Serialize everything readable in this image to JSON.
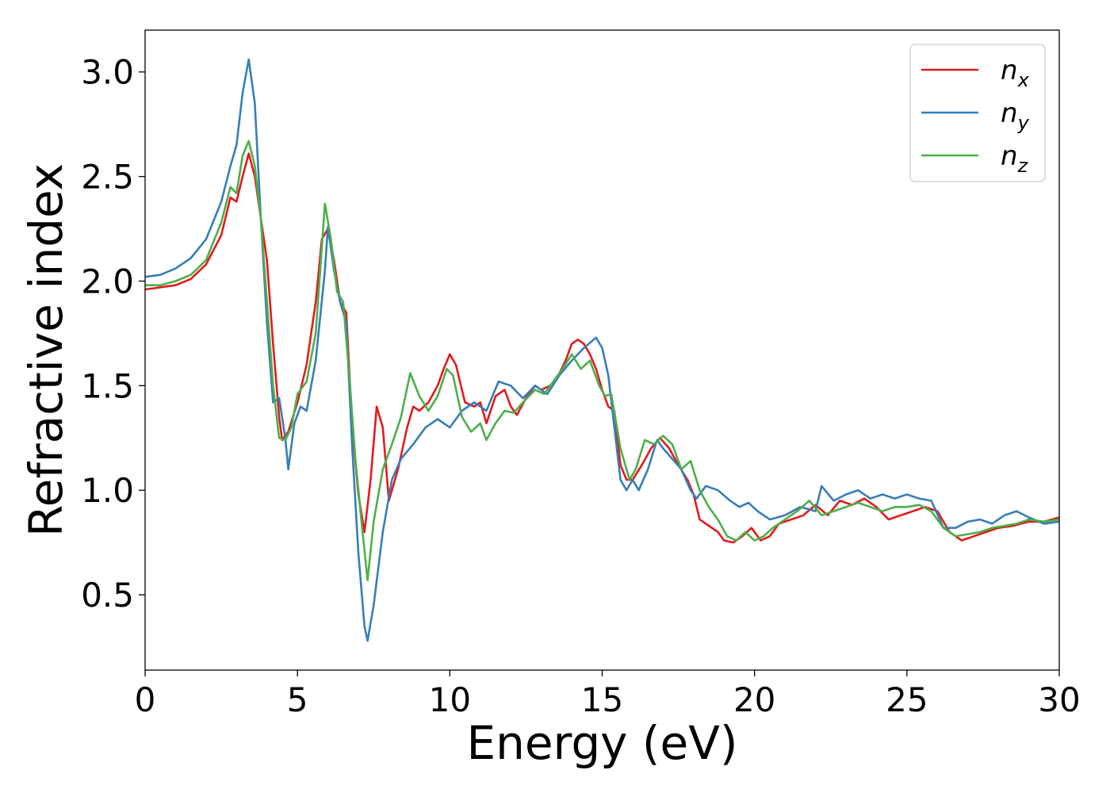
{
  "chart_data": {
    "type": "line",
    "title": "",
    "xlabel": "Energy (eV)",
    "ylabel": "Refractive index",
    "xlim": [
      0,
      30
    ],
    "ylim": [
      0.14,
      3.2
    ],
    "xticks": [
      0,
      5,
      10,
      15,
      20,
      25,
      30
    ],
    "yticks": [
      0.5,
      1.0,
      1.5,
      2.0,
      2.5,
      3.0
    ],
    "xtick_labels": [
      "0",
      "5",
      "10",
      "15",
      "20",
      "25",
      "30"
    ],
    "ytick_labels": [
      "0.5",
      "1.0",
      "1.5",
      "2.0",
      "2.5",
      "3.0"
    ],
    "grid": false,
    "legend_position": "top-right",
    "series": [
      {
        "name_base": "n",
        "name_sub": "x",
        "color": "#e41a1c",
        "points": [
          [
            0,
            1.96
          ],
          [
            1,
            1.98
          ],
          [
            1.5,
            2.01
          ],
          [
            2,
            2.08
          ],
          [
            2.5,
            2.22
          ],
          [
            2.8,
            2.4
          ],
          [
            3.0,
            2.38
          ],
          [
            3.2,
            2.5
          ],
          [
            3.4,
            2.61
          ],
          [
            3.6,
            2.5
          ],
          [
            3.8,
            2.3
          ],
          [
            4.0,
            2.1
          ],
          [
            4.2,
            1.7
          ],
          [
            4.4,
            1.35
          ],
          [
            4.5,
            1.24
          ],
          [
            4.7,
            1.28
          ],
          [
            5.0,
            1.42
          ],
          [
            5.3,
            1.6
          ],
          [
            5.6,
            1.9
          ],
          [
            5.8,
            2.2
          ],
          [
            6.0,
            2.25
          ],
          [
            6.2,
            2.1
          ],
          [
            6.4,
            1.9
          ],
          [
            6.6,
            1.85
          ],
          [
            6.8,
            1.3
          ],
          [
            7.0,
            0.98
          ],
          [
            7.2,
            0.8
          ],
          [
            7.4,
            1.05
          ],
          [
            7.6,
            1.4
          ],
          [
            7.8,
            1.3
          ],
          [
            8.0,
            0.95
          ],
          [
            8.3,
            1.1
          ],
          [
            8.6,
            1.3
          ],
          [
            8.8,
            1.4
          ],
          [
            9.0,
            1.38
          ],
          [
            9.3,
            1.42
          ],
          [
            9.6,
            1.5
          ],
          [
            9.8,
            1.58
          ],
          [
            10.0,
            1.65
          ],
          [
            10.2,
            1.6
          ],
          [
            10.5,
            1.42
          ],
          [
            10.8,
            1.4
          ],
          [
            11.0,
            1.42
          ],
          [
            11.2,
            1.32
          ],
          [
            11.5,
            1.45
          ],
          [
            11.8,
            1.48
          ],
          [
            12.0,
            1.4
          ],
          [
            12.2,
            1.36
          ],
          [
            12.5,
            1.44
          ],
          [
            12.8,
            1.5
          ],
          [
            13.0,
            1.48
          ],
          [
            13.3,
            1.5
          ],
          [
            13.6,
            1.56
          ],
          [
            13.8,
            1.62
          ],
          [
            14.0,
            1.7
          ],
          [
            14.2,
            1.72
          ],
          [
            14.4,
            1.7
          ],
          [
            14.6,
            1.65
          ],
          [
            14.8,
            1.58
          ],
          [
            15.0,
            1.48
          ],
          [
            15.2,
            1.4
          ],
          [
            15.4,
            1.38
          ],
          [
            15.6,
            1.12
          ],
          [
            15.8,
            1.05
          ],
          [
            16.0,
            1.05
          ],
          [
            16.3,
            1.12
          ],
          [
            16.6,
            1.2
          ],
          [
            16.9,
            1.25
          ],
          [
            17.2,
            1.2
          ],
          [
            17.5,
            1.12
          ],
          [
            17.8,
            1.05
          ],
          [
            18.0,
            0.98
          ],
          [
            18.2,
            0.86
          ],
          [
            18.5,
            0.83
          ],
          [
            18.8,
            0.8
          ],
          [
            19.0,
            0.76
          ],
          [
            19.3,
            0.75
          ],
          [
            19.6,
            0.78
          ],
          [
            19.9,
            0.82
          ],
          [
            20.2,
            0.76
          ],
          [
            20.5,
            0.78
          ],
          [
            20.8,
            0.84
          ],
          [
            21.2,
            0.86
          ],
          [
            21.6,
            0.88
          ],
          [
            22.0,
            0.93
          ],
          [
            22.4,
            0.88
          ],
          [
            22.8,
            0.95
          ],
          [
            23.2,
            0.93
          ],
          [
            23.6,
            0.96
          ],
          [
            24.0,
            0.92
          ],
          [
            24.4,
            0.86
          ],
          [
            24.8,
            0.88
          ],
          [
            25.2,
            0.9
          ],
          [
            25.6,
            0.92
          ],
          [
            26.0,
            0.9
          ],
          [
            26.4,
            0.8
          ],
          [
            26.8,
            0.76
          ],
          [
            27.2,
            0.78
          ],
          [
            27.6,
            0.8
          ],
          [
            28.0,
            0.82
          ],
          [
            28.5,
            0.83
          ],
          [
            29.0,
            0.85
          ],
          [
            29.5,
            0.85
          ],
          [
            30,
            0.87
          ]
        ]
      },
      {
        "name_base": "n",
        "name_sub": "y",
        "color": "#377eb8",
        "points": [
          [
            0,
            2.02
          ],
          [
            0.5,
            2.03
          ],
          [
            1,
            2.06
          ],
          [
            1.5,
            2.11
          ],
          [
            2,
            2.2
          ],
          [
            2.5,
            2.38
          ],
          [
            2.8,
            2.55
          ],
          [
            3.0,
            2.65
          ],
          [
            3.2,
            2.9
          ],
          [
            3.4,
            3.06
          ],
          [
            3.6,
            2.85
          ],
          [
            3.8,
            2.3
          ],
          [
            4.0,
            1.8
          ],
          [
            4.2,
            1.42
          ],
          [
            4.4,
            1.44
          ],
          [
            4.6,
            1.25
          ],
          [
            4.7,
            1.1
          ],
          [
            4.9,
            1.32
          ],
          [
            5.1,
            1.4
          ],
          [
            5.3,
            1.38
          ],
          [
            5.6,
            1.62
          ],
          [
            5.9,
            2.05
          ],
          [
            6.0,
            2.26
          ],
          [
            6.2,
            2.05
          ],
          [
            6.4,
            1.9
          ],
          [
            6.6,
            1.8
          ],
          [
            6.8,
            1.2
          ],
          [
            7.0,
            0.7
          ],
          [
            7.2,
            0.35
          ],
          [
            7.3,
            0.28
          ],
          [
            7.5,
            0.45
          ],
          [
            7.8,
            0.8
          ],
          [
            8.1,
            1.05
          ],
          [
            8.4,
            1.15
          ],
          [
            8.8,
            1.22
          ],
          [
            9.2,
            1.3
          ],
          [
            9.6,
            1.34
          ],
          [
            10.0,
            1.3
          ],
          [
            10.4,
            1.38
          ],
          [
            10.8,
            1.42
          ],
          [
            11.2,
            1.38
          ],
          [
            11.6,
            1.52
          ],
          [
            12.0,
            1.5
          ],
          [
            12.4,
            1.44
          ],
          [
            12.8,
            1.5
          ],
          [
            13.2,
            1.46
          ],
          [
            13.6,
            1.55
          ],
          [
            14.0,
            1.62
          ],
          [
            14.4,
            1.68
          ],
          [
            14.8,
            1.73
          ],
          [
            15.0,
            1.68
          ],
          [
            15.2,
            1.55
          ],
          [
            15.4,
            1.3
          ],
          [
            15.6,
            1.05
          ],
          [
            15.8,
            1.0
          ],
          [
            16.0,
            1.05
          ],
          [
            16.2,
            1.0
          ],
          [
            16.5,
            1.1
          ],
          [
            16.8,
            1.24
          ],
          [
            17.0,
            1.2
          ],
          [
            17.3,
            1.15
          ],
          [
            17.6,
            1.1
          ],
          [
            17.9,
            1.0
          ],
          [
            18.1,
            0.96
          ],
          [
            18.4,
            1.02
          ],
          [
            18.8,
            1.0
          ],
          [
            19.2,
            0.95
          ],
          [
            19.5,
            0.92
          ],
          [
            19.8,
            0.94
          ],
          [
            20.1,
            0.9
          ],
          [
            20.5,
            0.86
          ],
          [
            21.0,
            0.88
          ],
          [
            21.5,
            0.92
          ],
          [
            22.0,
            0.9
          ],
          [
            22.2,
            1.02
          ],
          [
            22.6,
            0.95
          ],
          [
            23.0,
            0.98
          ],
          [
            23.4,
            1.0
          ],
          [
            23.8,
            0.96
          ],
          [
            24.2,
            0.98
          ],
          [
            24.6,
            0.96
          ],
          [
            25.0,
            0.98
          ],
          [
            25.4,
            0.96
          ],
          [
            25.8,
            0.95
          ],
          [
            26.2,
            0.82
          ],
          [
            26.6,
            0.82
          ],
          [
            27.0,
            0.85
          ],
          [
            27.4,
            0.86
          ],
          [
            27.8,
            0.84
          ],
          [
            28.2,
            0.88
          ],
          [
            28.6,
            0.9
          ],
          [
            29.0,
            0.87
          ],
          [
            29.5,
            0.84
          ],
          [
            30,
            0.85
          ]
        ]
      },
      {
        "name_base": "n",
        "name_sub": "z",
        "color": "#4daf4a",
        "points": [
          [
            0,
            1.98
          ],
          [
            0.5,
            1.98
          ],
          [
            1,
            2.0
          ],
          [
            1.5,
            2.03
          ],
          [
            2,
            2.1
          ],
          [
            2.5,
            2.28
          ],
          [
            2.8,
            2.45
          ],
          [
            3.0,
            2.42
          ],
          [
            3.2,
            2.6
          ],
          [
            3.4,
            2.67
          ],
          [
            3.6,
            2.55
          ],
          [
            3.8,
            2.3
          ],
          [
            4.0,
            1.9
          ],
          [
            4.2,
            1.5
          ],
          [
            4.4,
            1.25
          ],
          [
            4.6,
            1.24
          ],
          [
            4.8,
            1.3
          ],
          [
            5.0,
            1.46
          ],
          [
            5.3,
            1.52
          ],
          [
            5.6,
            1.75
          ],
          [
            5.9,
            2.37
          ],
          [
            6.1,
            2.2
          ],
          [
            6.3,
            1.95
          ],
          [
            6.5,
            1.9
          ],
          [
            6.7,
            1.55
          ],
          [
            6.9,
            1.15
          ],
          [
            7.1,
            0.85
          ],
          [
            7.3,
            0.57
          ],
          [
            7.5,
            0.85
          ],
          [
            7.8,
            1.1
          ],
          [
            8.1,
            1.22
          ],
          [
            8.4,
            1.35
          ],
          [
            8.7,
            1.56
          ],
          [
            9.0,
            1.45
          ],
          [
            9.3,
            1.38
          ],
          [
            9.6,
            1.45
          ],
          [
            9.9,
            1.58
          ],
          [
            10.1,
            1.55
          ],
          [
            10.4,
            1.35
          ],
          [
            10.7,
            1.28
          ],
          [
            11.0,
            1.32
          ],
          [
            11.2,
            1.24
          ],
          [
            11.5,
            1.32
          ],
          [
            11.8,
            1.38
          ],
          [
            12.1,
            1.37
          ],
          [
            12.4,
            1.42
          ],
          [
            12.8,
            1.48
          ],
          [
            13.1,
            1.46
          ],
          [
            13.4,
            1.52
          ],
          [
            13.7,
            1.58
          ],
          [
            14.0,
            1.65
          ],
          [
            14.3,
            1.58
          ],
          [
            14.6,
            1.62
          ],
          [
            14.9,
            1.5
          ],
          [
            15.1,
            1.45
          ],
          [
            15.3,
            1.46
          ],
          [
            15.6,
            1.2
          ],
          [
            15.9,
            1.05
          ],
          [
            16.1,
            1.1
          ],
          [
            16.4,
            1.24
          ],
          [
            16.7,
            1.22
          ],
          [
            17.0,
            1.26
          ],
          [
            17.3,
            1.22
          ],
          [
            17.6,
            1.1
          ],
          [
            17.9,
            1.14
          ],
          [
            18.2,
            1.0
          ],
          [
            18.5,
            0.92
          ],
          [
            18.8,
            0.86
          ],
          [
            19.1,
            0.78
          ],
          [
            19.4,
            0.76
          ],
          [
            19.7,
            0.8
          ],
          [
            20.0,
            0.76
          ],
          [
            20.3,
            0.78
          ],
          [
            20.6,
            0.82
          ],
          [
            21.0,
            0.86
          ],
          [
            21.4,
            0.9
          ],
          [
            21.8,
            0.95
          ],
          [
            22.2,
            0.88
          ],
          [
            22.6,
            0.9
          ],
          [
            23.0,
            0.92
          ],
          [
            23.4,
            0.94
          ],
          [
            23.8,
            0.92
          ],
          [
            24.2,
            0.9
          ],
          [
            24.6,
            0.92
          ],
          [
            25.0,
            0.92
          ],
          [
            25.4,
            0.93
          ],
          [
            25.8,
            0.9
          ],
          [
            26.2,
            0.82
          ],
          [
            26.6,
            0.78
          ],
          [
            27.0,
            0.79
          ],
          [
            27.4,
            0.8
          ],
          [
            27.8,
            0.82
          ],
          [
            28.2,
            0.83
          ],
          [
            28.6,
            0.84
          ],
          [
            29.0,
            0.86
          ],
          [
            29.5,
            0.85
          ],
          [
            30,
            0.86
          ]
        ]
      }
    ]
  }
}
